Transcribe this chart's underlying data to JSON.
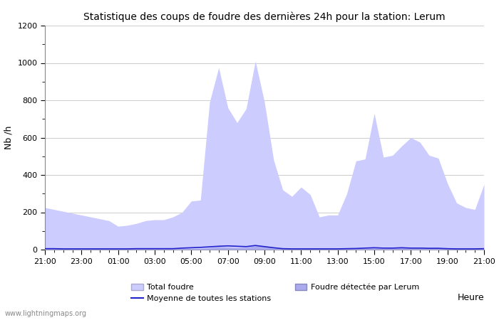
{
  "title": "Statistique des coups de foudre des dernières 24h pour la station: Lerum",
  "xlabel": "Heure",
  "ylabel": "Nb /h",
  "watermark": "www.lightningmaps.org",
  "ylim": [
    0,
    1200
  ],
  "yticks_major": [
    0,
    200,
    400,
    600,
    800,
    1000,
    1200
  ],
  "x_labels": [
    "21:00",
    "23:00",
    "01:00",
    "03:00",
    "05:00",
    "07:00",
    "09:00",
    "11:00",
    "13:00",
    "15:00",
    "17:00",
    "19:00",
    "21:00"
  ],
  "color_total": "#ccccff",
  "color_local": "#aaaaee",
  "color_mean": "#2222cc",
  "total_foudre": [
    225,
    215,
    205,
    195,
    185,
    175,
    165,
    155,
    125,
    130,
    140,
    155,
    160,
    160,
    175,
    200,
    260,
    265,
    790,
    975,
    760,
    680,
    755,
    1010,
    790,
    480,
    320,
    285,
    335,
    295,
    175,
    185,
    185,
    300,
    475,
    485,
    730,
    495,
    505,
    555,
    600,
    575,
    505,
    490,
    355,
    250,
    225,
    215,
    350
  ],
  "local_foudre": [
    5,
    5,
    5,
    4,
    4,
    4,
    4,
    3,
    3,
    4,
    4,
    4,
    4,
    3,
    3,
    5,
    5,
    5,
    10,
    15,
    12,
    10,
    12,
    20,
    18,
    10,
    5,
    4,
    5,
    5,
    3,
    3,
    3,
    4,
    5,
    6,
    8,
    6,
    8,
    10,
    8,
    8,
    6,
    5,
    4,
    3,
    3,
    3,
    5
  ],
  "mean_line": [
    5,
    5,
    4,
    4,
    4,
    4,
    4,
    4,
    4,
    4,
    5,
    5,
    5,
    5,
    5,
    8,
    10,
    12,
    15,
    18,
    20,
    18,
    16,
    22,
    16,
    10,
    5,
    4,
    4,
    4,
    4,
    4,
    4,
    5,
    6,
    8,
    10,
    8,
    8,
    10,
    8,
    8,
    7,
    7,
    5,
    4,
    4,
    4,
    5
  ]
}
